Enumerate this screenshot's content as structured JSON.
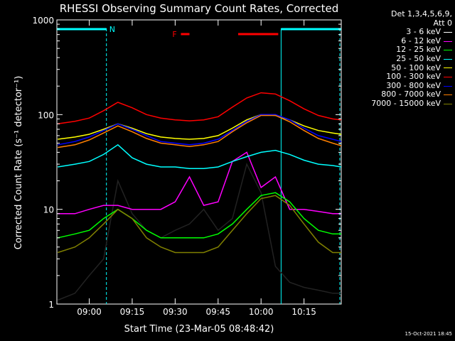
{
  "chart_data": {
    "type": "line",
    "title": "RHESSI Observing Summary Count Rates, Corrected",
    "xlabel": "Start Time (23-Mar-05 08:48:42)",
    "ylabel": "Corrected Count Rate (s⁻¹ detector⁻¹)",
    "yscale": "log",
    "ylim": [
      1,
      1000
    ],
    "xlim": [
      "08:48:42",
      "10:28:00"
    ],
    "x_ticks": [
      "09:00",
      "09:15",
      "09:30",
      "09:45",
      "10:00",
      "10:15"
    ],
    "y_ticks": [
      "1",
      "10",
      "100",
      "1000"
    ],
    "grid": false,
    "legend_position": "right",
    "legend_header": [
      "Det 1,3,4,5,6,9,",
      "Att 0"
    ],
    "x": [
      "08:49",
      "08:55",
      "09:00",
      "09:05",
      "09:10",
      "09:15",
      "09:20",
      "09:25",
      "09:30",
      "09:35",
      "09:40",
      "09:45",
      "09:50",
      "09:55",
      "10:00",
      "10:05",
      "10:10",
      "10:15",
      "10:20",
      "10:25",
      "10:28"
    ],
    "series": [
      {
        "name": "3 - 6 keV",
        "color": "#000000",
        "values": [
          1.1,
          1.3,
          2,
          3,
          20,
          9,
          6,
          5,
          6,
          7,
          10,
          6,
          8,
          30,
          15,
          2.5,
          1.7,
          1.5,
          1.4,
          1.3,
          1.3
        ]
      },
      {
        "name": "6 - 12 keV",
        "color": "#ff00ff",
        "values": [
          9,
          9,
          10,
          11,
          11,
          10,
          10,
          10,
          12,
          22,
          11,
          12,
          32,
          40,
          17,
          22,
          10,
          10,
          9.5,
          9,
          9
        ]
      },
      {
        "name": "12 - 25 keV",
        "color": "#00ff00",
        "values": [
          5,
          5.5,
          6,
          8,
          10,
          8,
          6,
          5,
          5,
          5,
          5,
          5.5,
          7,
          10,
          14,
          15,
          12,
          8,
          6,
          5.5,
          5.5
        ]
      },
      {
        "name": "25 - 50 keV",
        "color": "#00ffff",
        "values": [
          28,
          30,
          32,
          38,
          48,
          35,
          30,
          28,
          28,
          27,
          27,
          28,
          32,
          36,
          40,
          42,
          38,
          33,
          30,
          29,
          28
        ]
      },
      {
        "name": "50 - 100 keV",
        "color": "#ffff00",
        "values": [
          55,
          58,
          62,
          70,
          80,
          72,
          63,
          58,
          56,
          55,
          56,
          60,
          72,
          88,
          100,
          98,
          88,
          76,
          68,
          64,
          62
        ]
      },
      {
        "name": "100 - 300 keV",
        "color": "#ff0000",
        "values": [
          80,
          85,
          92,
          110,
          135,
          118,
          100,
          92,
          88,
          86,
          88,
          95,
          120,
          150,
          170,
          165,
          140,
          115,
          98,
          90,
          88
        ]
      },
      {
        "name": "300 - 800 keV",
        "color": "#0000ff",
        "values": [
          48,
          52,
          58,
          68,
          80,
          70,
          60,
          52,
          50,
          48,
          50,
          55,
          68,
          85,
          100,
          100,
          88,
          72,
          60,
          55,
          52
        ]
      },
      {
        "name": "800 - 7000 keV",
        "color": "#ff8000",
        "values": [
          45,
          48,
          54,
          64,
          76,
          66,
          56,
          50,
          48,
          46,
          48,
          52,
          66,
          82,
          98,
          98,
          84,
          68,
          56,
          50,
          47
        ]
      },
      {
        "name": "7000 - 15000 keV",
        "color": "#808000",
        "values": [
          3.5,
          4,
          5,
          7,
          10,
          8,
          5,
          4,
          3.5,
          3.5,
          3.5,
          4,
          6,
          9,
          13,
          14,
          11,
          7,
          4.5,
          3.5,
          3.5
        ]
      }
    ],
    "annotations": {
      "night_label": "N",
      "flare_label": "F",
      "night_intervals": [
        [
          "08:48:42",
          "09:06:00"
        ],
        [
          "10:07:00",
          "10:28:00"
        ]
      ],
      "night_lines": [
        "09:06",
        "10:07",
        "10:27:30"
      ],
      "flare_intervals": [
        [
          "09:32:00",
          "09:35:00"
        ],
        [
          "09:52:00",
          "10:06:00"
        ]
      ],
      "night_color": "#00ffff",
      "flare_color": "#ff0000"
    }
  },
  "timestamp": "15-Oct-2021 18:45"
}
